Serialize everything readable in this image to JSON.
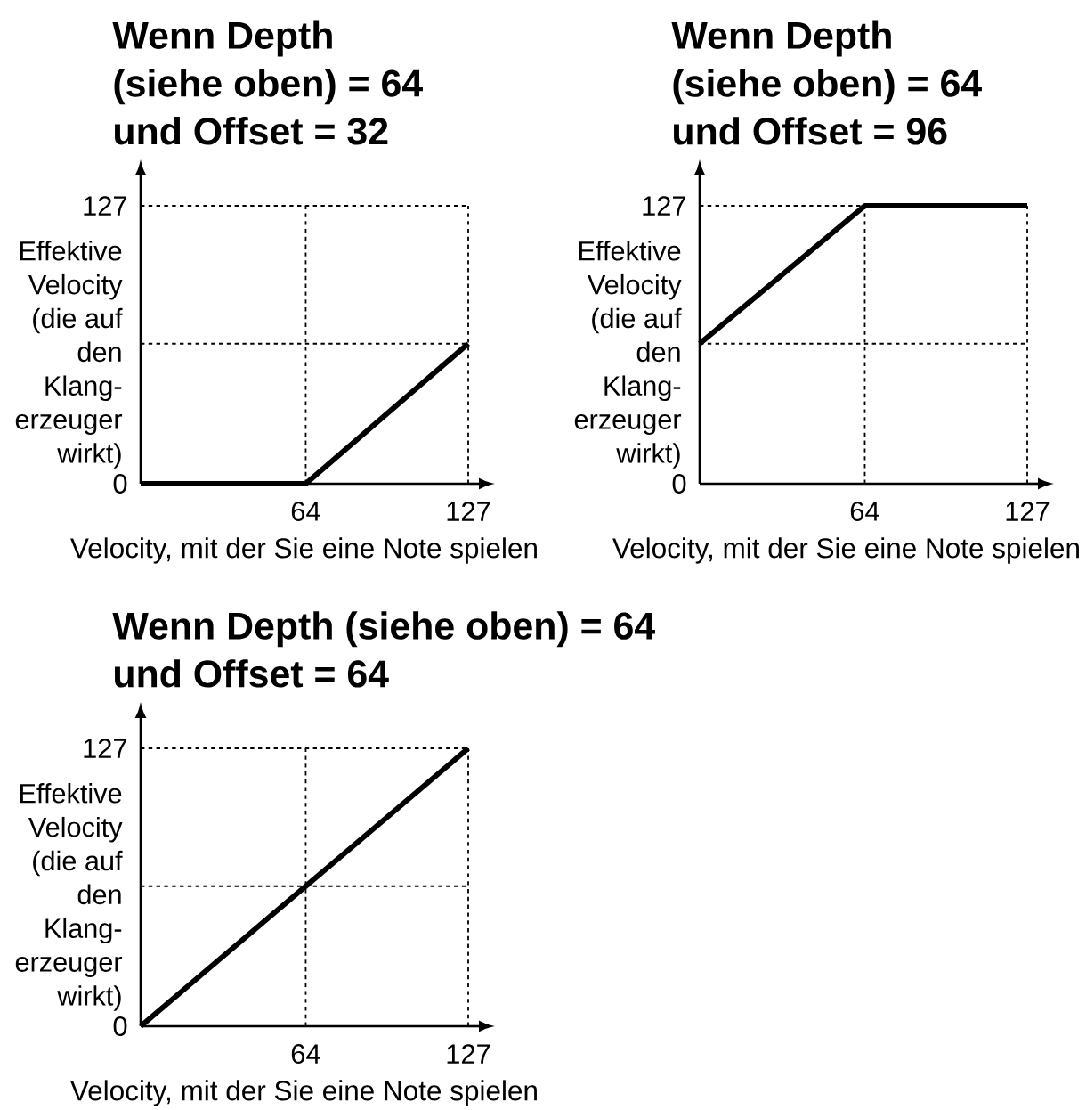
{
  "chart_data": [
    {
      "type": "line",
      "title": "Wenn Depth (siehe oben) = 64 und Offset = 32",
      "xlabel": "Velocity, mit der Sie eine Note spielen",
      "ylabel": "Effektive Velocity (die auf den Klang-erzeuger wirkt)",
      "x": [
        0,
        64,
        127
      ],
      "values": [
        0,
        0,
        64
      ],
      "color": "#000000",
      "xlim": [
        0,
        127
      ],
      "ylim": [
        0,
        127
      ],
      "xticks": [
        64,
        127
      ],
      "yticks": [
        0,
        127
      ],
      "grid": true,
      "ref_lines": [
        {
          "axis": "y",
          "value": 64,
          "color": "#000000",
          "line_style": "dotted"
        }
      ],
      "marker": "none",
      "line_style": "solid"
    },
    {
      "type": "line",
      "title": "Wenn Depth (siehe oben) = 64 und Offset = 96",
      "xlabel": "Velocity, mit der Sie eine Note spielen",
      "ylabel": "Effektive Velocity (die auf den Klang-erzeuger wirkt)",
      "x": [
        0,
        64,
        127
      ],
      "values": [
        64,
        127,
        127
      ],
      "color": "#000000",
      "xlim": [
        0,
        127
      ],
      "ylim": [
        0,
        127
      ],
      "xticks": [
        64,
        127
      ],
      "yticks": [
        0,
        127
      ],
      "grid": true,
      "ref_lines": [
        {
          "axis": "y",
          "value": 64,
          "color": "#000000",
          "line_style": "dotted"
        }
      ],
      "marker": "none",
      "line_style": "solid"
    },
    {
      "type": "line",
      "title": "Wenn Depth (siehe oben) = 64 und Offset = 64",
      "xlabel": "Velocity, mit der Sie eine Note spielen",
      "ylabel": "Effektive Velocity (die auf den Klang-erzeuger wirkt)",
      "x": [
        0,
        127
      ],
      "values": [
        0,
        127
      ],
      "color": "#000000",
      "xlim": [
        0,
        127
      ],
      "ylim": [
        0,
        127
      ],
      "xticks": [
        64,
        127
      ],
      "yticks": [
        0,
        127
      ],
      "grid": true,
      "ref_lines": [
        {
          "axis": "y",
          "value": 64,
          "color": "#000000",
          "line_style": "dotted"
        }
      ],
      "marker": "none",
      "line_style": "solid"
    }
  ]
}
